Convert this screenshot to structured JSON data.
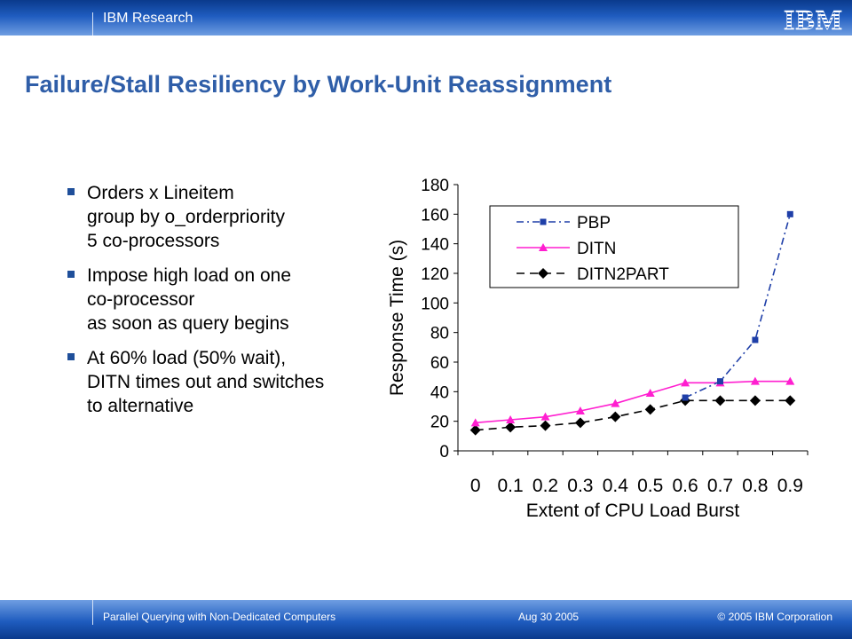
{
  "header": {
    "org": "IBM Research",
    "logo": "IBM"
  },
  "slide": {
    "title": "Failure/Stall Resiliency by Work-Unit Reassignment",
    "bullets": [
      {
        "lines": [
          "Orders x Lineitem",
          "group by o_orderpriority",
          "5 co-processors"
        ]
      },
      {
        "lines": [
          "Impose high load on one",
          "co-processor",
          "as soon as query begins"
        ]
      },
      {
        "lines": [
          "At 60% load (50% wait),",
          "DITN times out and switches",
          "to alternative"
        ]
      }
    ]
  },
  "chart_data": {
    "type": "line",
    "x": [
      0,
      0.1,
      0.2,
      0.3,
      0.4,
      0.5,
      0.6,
      0.7,
      0.8,
      0.9
    ],
    "x_tick_labels": [
      "0",
      "0.1",
      "0.2",
      "0.3",
      "0.4",
      "0.5",
      "0.6",
      "0.7",
      "0.8",
      "0.9"
    ],
    "xlabel": "Extent of CPU Load Burst",
    "ylabel": "Response Time (s)",
    "ylim": [
      0,
      180
    ],
    "y_ticks": [
      0,
      20,
      40,
      60,
      80,
      100,
      120,
      140,
      160,
      180
    ],
    "legend_position": "top-right",
    "series": [
      {
        "name": "PBP",
        "color": "#1f3fa8",
        "dash": "dashdot",
        "marker": "square",
        "values": [
          null,
          null,
          null,
          null,
          null,
          null,
          36,
          47,
          75,
          160
        ]
      },
      {
        "name": "DITN",
        "color": "#ff1fd0",
        "dash": "solid",
        "marker": "triangle",
        "values": [
          19,
          21,
          23,
          27,
          32,
          39,
          46,
          46,
          47,
          47
        ]
      },
      {
        "name": "DITN2PART",
        "color": "#000000",
        "dash": "dashed",
        "marker": "diamond",
        "values": [
          14,
          16,
          17,
          19,
          23,
          28,
          34,
          34,
          34,
          34
        ]
      }
    ]
  },
  "footer": {
    "presentation": "Parallel Querying with Non-Dedicated Computers",
    "date": "Aug 30 2005",
    "copyright": "© 2005 IBM Corporation"
  }
}
